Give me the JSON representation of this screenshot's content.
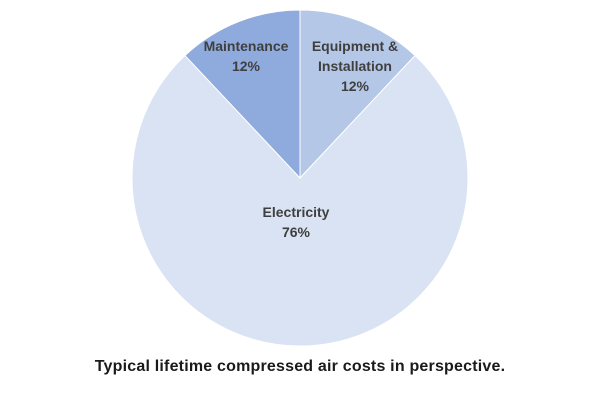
{
  "chart_data": {
    "type": "pie",
    "title": "",
    "start_angle_deg": 0,
    "direction": "clockwise",
    "legend": "none",
    "categories": [
      "Equipment & Installation",
      "Electricity",
      "Maintenance"
    ],
    "values": [
      12,
      76,
      12
    ],
    "slices": [
      {
        "id": "equipment-installation",
        "label": "Equipment &\nInstallation",
        "pct_label": "12%",
        "value": 12,
        "color": "#b4c7e7"
      },
      {
        "id": "electricity",
        "label": "Electricity",
        "pct_label": "76%",
        "value": 76,
        "color": "#dae3f3"
      },
      {
        "id": "maintenance",
        "label": "Maintenance",
        "pct_label": "12%",
        "value": 12,
        "color": "#8faadc"
      }
    ]
  },
  "caption": "Typical lifetime compressed air costs in perspective.",
  "colors": {
    "background": "#ffffff",
    "label_text": "#3f3f3f",
    "caption_text": "#1a1a1a",
    "slice_border": "#ffffff"
  }
}
